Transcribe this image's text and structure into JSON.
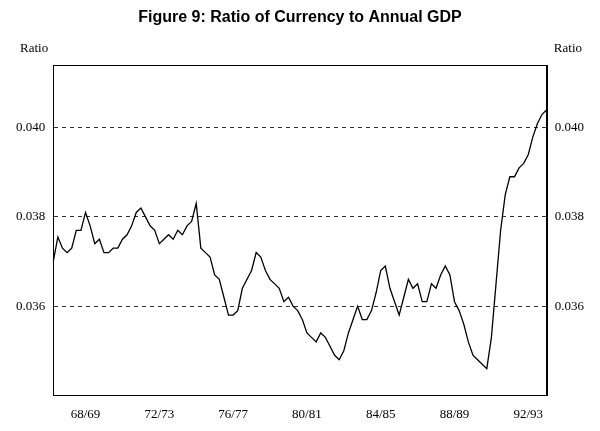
{
  "chart_data": {
    "type": "line",
    "title": "Figure 9: Ratio of Currency to Annual GDP",
    "y_label": "Ratio",
    "y2_label": "Ratio",
    "categories": [
      null,
      null,
      null,
      null,
      null,
      null,
      null,
      "68/69",
      null,
      null,
      null,
      null,
      null,
      null,
      null,
      null,
      null,
      null,
      null,
      null,
      null,
      null,
      null,
      "72/73",
      null,
      null,
      null,
      null,
      null,
      null,
      null,
      null,
      null,
      null,
      null,
      null,
      null,
      null,
      null,
      "76/77",
      null,
      null,
      null,
      null,
      null,
      null,
      null,
      null,
      null,
      null,
      null,
      null,
      null,
      null,
      null,
      "80/81",
      null,
      null,
      null,
      null,
      null,
      null,
      null,
      null,
      null,
      null,
      null,
      null,
      null,
      null,
      null,
      "84/85",
      null,
      null,
      null,
      null,
      null,
      null,
      null,
      null,
      null,
      null,
      null,
      null,
      null,
      null,
      null,
      "88/89",
      null,
      null,
      null,
      null,
      null,
      null,
      null,
      null,
      null,
      null,
      null,
      null,
      null,
      null,
      null,
      "92/93",
      null,
      null,
      null,
      null
    ],
    "values": [
      0.037,
      0.03755,
      0.0373,
      0.0372,
      0.0373,
      0.0377,
      0.0377,
      0.0381,
      0.0378,
      0.0374,
      0.0375,
      0.0372,
      0.0372,
      0.0373,
      0.0373,
      0.0375,
      0.0376,
      0.0378,
      0.0381,
      0.0382,
      0.038,
      0.0378,
      0.0377,
      0.0374,
      0.0375,
      0.0376,
      0.0375,
      0.0377,
      0.0376,
      0.0378,
      0.0379,
      0.0383,
      0.0373,
      0.0372,
      0.0371,
      0.0367,
      0.0366,
      0.0362,
      0.0358,
      0.0358,
      0.0359,
      0.0364,
      0.0366,
      0.0368,
      0.0372,
      0.0371,
      0.0368,
      0.0366,
      0.0365,
      0.0364,
      0.0361,
      0.0362,
      0.036,
      0.0359,
      0.0357,
      0.0354,
      0.0353,
      0.0352,
      0.0354,
      0.0353,
      0.0351,
      0.0349,
      0.0348,
      0.035,
      0.0354,
      0.0357,
      0.036,
      0.0357,
      0.0357,
      0.0359,
      0.0363,
      0.0368,
      0.0369,
      0.0364,
      0.0361,
      0.0358,
      0.0362,
      0.0366,
      0.0364,
      0.0365,
      0.0361,
      0.0361,
      0.0365,
      0.0364,
      0.0367,
      0.0369,
      0.0367,
      0.0361,
      0.0359,
      0.0356,
      0.0352,
      0.0349,
      0.0348,
      0.0347,
      0.0346,
      0.0353,
      0.0365,
      0.0377,
      0.0385,
      0.0389,
      0.0389,
      0.0391,
      0.0392,
      0.0394,
      0.0398,
      0.0401,
      0.0403,
      0.0404
    ],
    "color": "#000000",
    "ylim": [
      0.034,
      0.0414
    ],
    "yticks": [
      0.036,
      0.038,
      {
        "value": 0.04,
        "label": "0.040"
      }
    ],
    "y2lim": [
      0.034,
      0.0414
    ],
    "y2ticks": [
      0.036,
      0.038,
      {
        "value": 0.04,
        "label": "0.040"
      }
    ],
    "grid": true
  }
}
